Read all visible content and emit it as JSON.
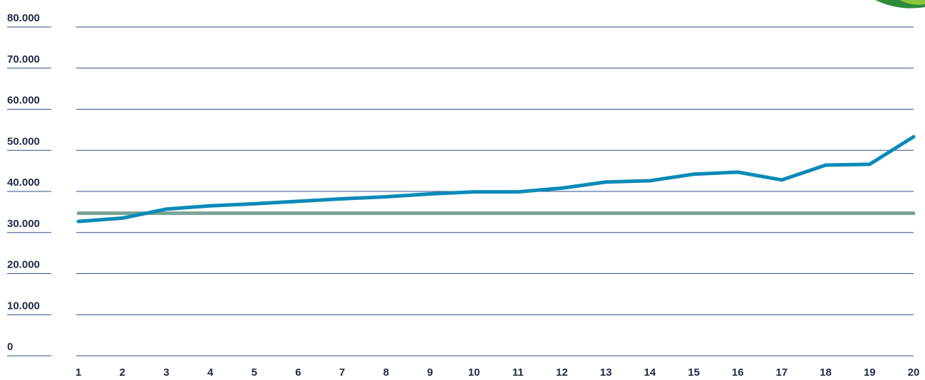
{
  "chart_data": {
    "type": "line",
    "title": "",
    "xlabel": "",
    "ylabel": "",
    "categories": [
      "1",
      "2",
      "3",
      "4",
      "5",
      "6",
      "7",
      "8",
      "9",
      "10",
      "11",
      "12",
      "13",
      "14",
      "15",
      "16",
      "17",
      "18",
      "19",
      "20"
    ],
    "y_ticks": [
      "0",
      "10.000",
      "20.000",
      "30.000",
      "40.000",
      "50.000",
      "60.000",
      "70.000",
      "80.000"
    ],
    "ylim": [
      0,
      80000
    ],
    "grid": true,
    "series": [
      {
        "color": "#0a8ab8",
        "values": [
          32700,
          33500,
          35700,
          36500,
          37000,
          37600,
          38200,
          38700,
          39400,
          39900,
          39900,
          40800,
          42300,
          42600,
          44200,
          44700,
          42800,
          46400,
          46600,
          53300
        ]
      },
      {
        "color": "#7aa394",
        "values": [
          34700,
          34700,
          34700,
          34700,
          34700,
          34700,
          34700,
          34700,
          34700,
          34700,
          34700,
          34700,
          34700,
          34700,
          34700,
          34700,
          34700,
          34700,
          34700,
          34700
        ]
      }
    ]
  },
  "colors": {
    "grid": "#2e4d8a",
    "label": "#1f2a44",
    "logo_dark": "#2e8b3a",
    "logo_light": "#8cc63f"
  }
}
